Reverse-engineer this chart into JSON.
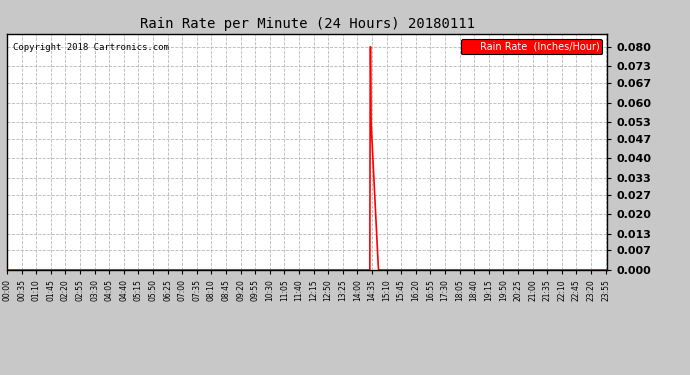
{
  "title": "Rain Rate per Minute (24 Hours) 20180111",
  "copyright_text": "Copyright 2018 Cartronics.com",
  "legend_label": "Rain Rate  (Inches/Hour)",
  "legend_bg": "#ff0000",
  "legend_fg": "#ffffff",
  "line_color": "#ff0000",
  "background_color": "#c8c8c8",
  "plot_bg_color": "#ffffff",
  "grid_color": "#b0b0b0",
  "ylim": [
    0.0,
    0.0847
  ],
  "yticks": [
    0.0,
    0.007,
    0.013,
    0.02,
    0.027,
    0.033,
    0.04,
    0.047,
    0.053,
    0.06,
    0.067,
    0.073,
    0.08
  ],
  "total_minutes": 1440,
  "rain_profile": [
    [
      870,
      0.0
    ],
    [
      871,
      0.08
    ],
    [
      872,
      0.08
    ],
    [
      873,
      0.053
    ],
    [
      874,
      0.05
    ],
    [
      875,
      0.047
    ],
    [
      876,
      0.044
    ],
    [
      877,
      0.041
    ],
    [
      878,
      0.038
    ],
    [
      879,
      0.035
    ],
    [
      880,
      0.032
    ],
    [
      881,
      0.029
    ],
    [
      882,
      0.026
    ],
    [
      883,
      0.023
    ],
    [
      884,
      0.02
    ],
    [
      885,
      0.017
    ],
    [
      886,
      0.014
    ],
    [
      887,
      0.011
    ],
    [
      888,
      0.008
    ],
    [
      889,
      0.005
    ],
    [
      890,
      0.002
    ],
    [
      891,
      0.0
    ]
  ],
  "xtick_minutes": [
    0,
    35,
    70,
    105,
    140,
    175,
    210,
    245,
    280,
    315,
    350,
    385,
    420,
    455,
    490,
    525,
    560,
    595,
    630,
    665,
    700,
    735,
    770,
    805,
    840,
    875,
    910,
    945,
    980,
    1015,
    1050,
    1085,
    1120,
    1155,
    1190,
    1225,
    1260,
    1295,
    1330,
    1365,
    1400,
    1435
  ],
  "xtick_labels": [
    "00:00",
    "00:35",
    "01:10",
    "01:45",
    "02:20",
    "02:55",
    "03:30",
    "04:05",
    "04:40",
    "05:15",
    "05:50",
    "06:25",
    "07:00",
    "07:35",
    "08:10",
    "08:45",
    "09:20",
    "09:55",
    "10:30",
    "11:05",
    "11:40",
    "12:15",
    "12:50",
    "13:25",
    "14:00",
    "14:35",
    "15:10",
    "15:45",
    "16:20",
    "16:55",
    "17:30",
    "18:05",
    "18:40",
    "19:15",
    "19:50",
    "20:25",
    "21:00",
    "21:35",
    "22:10",
    "22:45",
    "23:20",
    "23:55"
  ]
}
